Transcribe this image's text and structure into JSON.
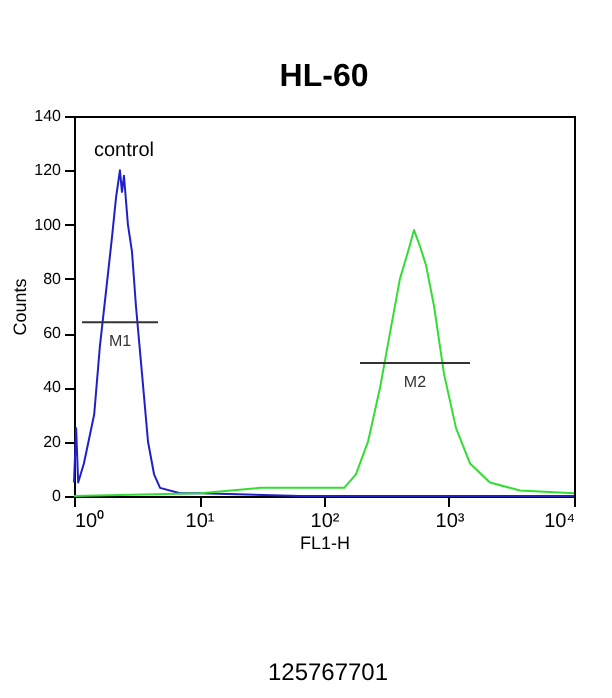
{
  "chart_data": {
    "type": "line",
    "title": "HL-60",
    "xlabel": "FL1-H",
    "ylabel": "Counts",
    "log": "x",
    "xlim": [
      1,
      10000
    ],
    "xticks": [
      {
        "value": 1,
        "label": "10⁰"
      },
      {
        "value": 10,
        "label": "10¹"
      },
      {
        "value": 100,
        "label": "10²"
      },
      {
        "value": 1000,
        "label": "10³"
      },
      {
        "value": 10000,
        "label": "10⁴"
      }
    ],
    "ylim": [
      0,
      140
    ],
    "yticks": [
      0,
      20,
      40,
      60,
      80,
      100,
      120,
      140
    ],
    "grid": false,
    "series": [
      {
        "color": "#2020c8",
        "x": [
          1.0,
          1.04,
          1.08,
          1.2,
          1.45,
          1.61,
          1.8,
          2.01,
          2.17,
          2.33,
          2.42,
          2.51,
          2.7,
          2.91,
          3.13,
          3.5,
          3.91,
          4.37,
          4.88,
          7.05,
          10.2,
          64,
          10000
        ],
        "values": [
          5,
          25,
          5,
          12,
          30,
          55,
          75,
          95,
          110,
          120,
          112,
          118,
          100,
          90,
          70,
          45,
          20,
          8,
          3,
          1,
          1,
          0,
          0
        ]
      },
      {
        "color": "#33dd33",
        "x": [
          1,
          10.2,
          30.8,
          92.9,
          145,
          180,
          225,
          281,
          337,
          405,
          470,
          525,
          586,
          655,
          759,
          912,
          1138,
          1472,
          2128,
          3698,
          10000
        ],
        "values": [
          0,
          1,
          3,
          3,
          3,
          8,
          20,
          40,
          60,
          80,
          90,
          98,
          92,
          85,
          70,
          45,
          25,
          12,
          5,
          2,
          1
        ]
      },
      {
        "name": "M1",
        "color": "#333333",
        "x": [
          1.16,
          4.7
        ],
        "values": [
          64,
          64
        ]
      },
      {
        "name": "M2",
        "color": "#333333",
        "x": [
          194,
          1472
        ],
        "values": [
          49,
          49
        ]
      }
    ],
    "annotations": [
      "control",
      "125767701"
    ]
  }
}
